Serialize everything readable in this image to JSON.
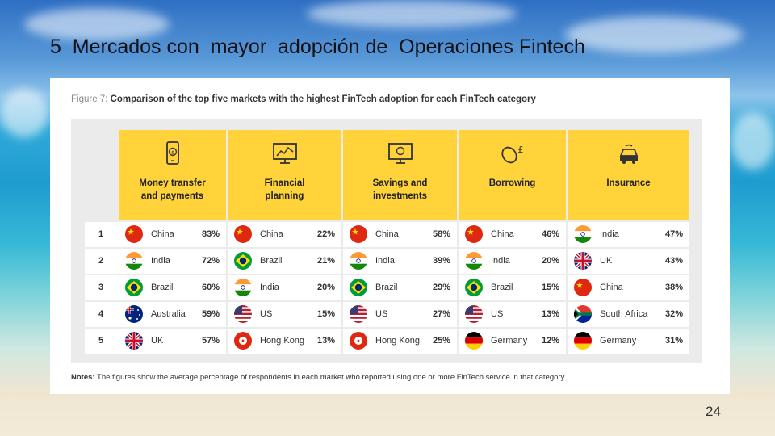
{
  "slide": {
    "title": "5  Mercados con  mayor  adopción de  Operaciones Fintech",
    "page_number": "24"
  },
  "figure": {
    "caption_label": "Figure 7: ",
    "caption_text": "Comparison of the top five markets with the highest FinTech adoption for each FinTech category",
    "notes_label": "Notes:",
    "notes_text": " The figures show the average percentage of respondents in each market who reported using one or more FinTech service in that category."
  },
  "categories": [
    {
      "name": "Money transfer\nand payments",
      "icon": "phone-dollar-icon"
    },
    {
      "name": "Financial\nplanning",
      "icon": "chart-monitor-icon"
    },
    {
      "name": "Savings and\ninvestments",
      "icon": "savings-monitor-icon"
    },
    {
      "name": "Borrowing",
      "icon": "mouse-pound-icon"
    },
    {
      "name": "Insurance",
      "icon": "car-icon"
    }
  ],
  "ranks": [
    "1",
    "2",
    "3",
    "4",
    "5"
  ],
  "table": [
    [
      {
        "country": "China",
        "pct": "83%",
        "flag": "cn"
      },
      {
        "country": "India",
        "pct": "72%",
        "flag": "in"
      },
      {
        "country": "Brazil",
        "pct": "60%",
        "flag": "br"
      },
      {
        "country": "Australia",
        "pct": "59%",
        "flag": "au"
      },
      {
        "country": "UK",
        "pct": "57%",
        "flag": "uk"
      }
    ],
    [
      {
        "country": "China",
        "pct": "22%",
        "flag": "cn"
      },
      {
        "country": "Brazil",
        "pct": "21%",
        "flag": "br"
      },
      {
        "country": "India",
        "pct": "20%",
        "flag": "in"
      },
      {
        "country": "US",
        "pct": "15%",
        "flag": "us"
      },
      {
        "country": "Hong Kong",
        "pct": "13%",
        "flag": "hk"
      }
    ],
    [
      {
        "country": "China",
        "pct": "58%",
        "flag": "cn"
      },
      {
        "country": "India",
        "pct": "39%",
        "flag": "in"
      },
      {
        "country": "Brazil",
        "pct": "29%",
        "flag": "br"
      },
      {
        "country": "US",
        "pct": "27%",
        "flag": "us"
      },
      {
        "country": "Hong Kong",
        "pct": "25%",
        "flag": "hk"
      }
    ],
    [
      {
        "country": "China",
        "pct": "46%",
        "flag": "cn"
      },
      {
        "country": "India",
        "pct": "20%",
        "flag": "in"
      },
      {
        "country": "Brazil",
        "pct": "15%",
        "flag": "br"
      },
      {
        "country": "US",
        "pct": "13%",
        "flag": "us"
      },
      {
        "country": "Germany",
        "pct": "12%",
        "flag": "de"
      }
    ],
    [
      {
        "country": "India",
        "pct": "47%",
        "flag": "in"
      },
      {
        "country": "UK",
        "pct": "43%",
        "flag": "uk"
      },
      {
        "country": "China",
        "pct": "38%",
        "flag": "cn"
      },
      {
        "country": "South Africa",
        "pct": "32%",
        "flag": "za"
      },
      {
        "country": "Germany",
        "pct": "31%",
        "flag": "de"
      }
    ]
  ]
}
